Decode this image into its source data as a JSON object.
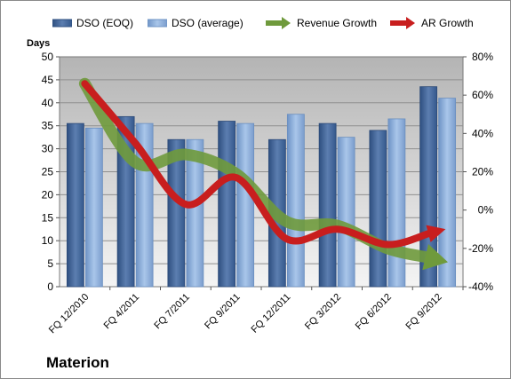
{
  "company": "Materion",
  "legend": {
    "dso_eoq": "DSO (EOQ)",
    "dso_avg": "DSO (average)",
    "revenue": "Revenue Growth",
    "ar": "AR Growth"
  },
  "colors": {
    "dso_eoq": "#4a6a9a",
    "dso_avg": "#8fb0d8",
    "revenue": "#6f9a3c",
    "ar": "#c81e1e",
    "plot_bg": "#c8c8c8"
  },
  "chart_data": {
    "type": "bar",
    "categories": [
      "FQ 12/2010",
      "FQ 4/2011",
      "FQ 7/2011",
      "FQ 9/2011",
      "FQ 12/2011",
      "FQ 3/2012",
      "FQ 6/2012",
      "FQ 9/2012"
    ],
    "series": [
      {
        "name": "DSO (EOQ)",
        "axis": "left",
        "kind": "bar",
        "values": [
          35.5,
          37,
          32,
          36,
          32,
          35.5,
          34,
          43.5
        ]
      },
      {
        "name": "DSO (average)",
        "axis": "left",
        "kind": "bar",
        "values": [
          34.5,
          35.5,
          32,
          35.5,
          37.5,
          32.5,
          36.5,
          41
        ]
      },
      {
        "name": "Revenue Growth",
        "axis": "right",
        "kind": "arrow",
        "values": [
          66,
          25,
          29,
          19,
          -6,
          -8,
          -20,
          -26
        ]
      },
      {
        "name": "AR Growth",
        "axis": "right",
        "kind": "arrow",
        "values": [
          66,
          35,
          3,
          17,
          -15,
          -10,
          -18,
          -11
        ]
      }
    ],
    "ylabel": "Days",
    "ylim": [
      0,
      50
    ],
    "yticks": [
      "0",
      "5",
      "10",
      "15",
      "20",
      "25",
      "30",
      "35",
      "40",
      "45",
      "50"
    ],
    "y2lim": [
      -40,
      80
    ],
    "y2ticks": [
      "-40%",
      "-20%",
      "0%",
      "20%",
      "40%",
      "60%",
      "80%"
    ],
    "grid": true,
    "legend_position": "top"
  }
}
